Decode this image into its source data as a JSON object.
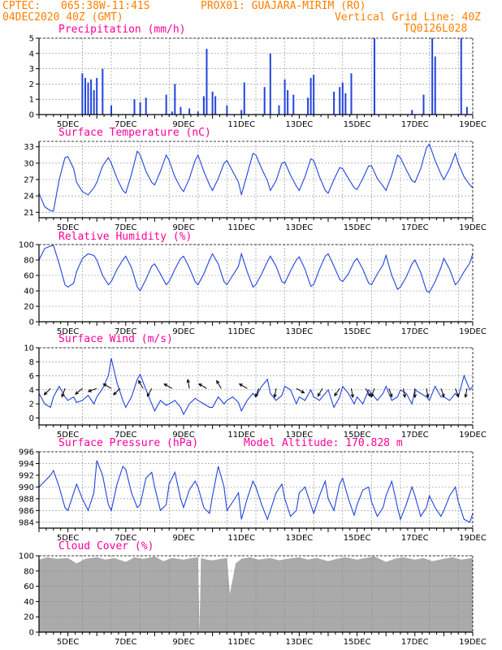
{
  "header": {
    "line1_left": "CPTEC:",
    "coords": "065:38W-11:41S",
    "station": "PROX01: GUAJARA-MIRIM (RO)",
    "datetime": "04DEC2020 40Z (GMT)",
    "vgrid": "Vertical Grid Line: 40Z",
    "code": "TQ0126L028"
  },
  "colors": {
    "header": "#ff7f00",
    "title": "#ff0099",
    "line": "#2244dd",
    "cloud": "#aaaaaa",
    "arrow": "#000000"
  },
  "x_ticks": [
    "5DEC",
    "7DEC",
    "9DEC",
    "11DEC",
    "13DEC",
    "15DEC",
    "17DEC",
    "19DEC"
  ],
  "chart_data": [
    {
      "type": "bar",
      "title": "Precipitation (mm/h)",
      "ylim": [
        0,
        5
      ],
      "yticks": [
        "0",
        "1",
        "2",
        "3",
        "4",
        "5"
      ],
      "x_range": [
        4,
        19
      ],
      "events": [
        [
          5.5,
          2.7
        ],
        [
          5.6,
          2.4
        ],
        [
          5.7,
          2.1
        ],
        [
          5.8,
          2.3
        ],
        [
          5.9,
          1.6
        ],
        [
          6.0,
          2.4
        ],
        [
          6.2,
          3.0
        ],
        [
          6.5,
          0.6
        ],
        [
          7.3,
          1.0
        ],
        [
          7.5,
          0.8
        ],
        [
          7.7,
          1.1
        ],
        [
          8.4,
          1.3
        ],
        [
          8.6,
          0.2
        ],
        [
          8.7,
          2.0
        ],
        [
          8.9,
          0.5
        ],
        [
          9.2,
          0.4
        ],
        [
          9.5,
          0.2
        ],
        [
          9.7,
          1.2
        ],
        [
          9.8,
          4.3
        ],
        [
          10.0,
          1.5
        ],
        [
          10.1,
          1.2
        ],
        [
          10.5,
          0.6
        ],
        [
          11.0,
          0.3
        ],
        [
          11.1,
          2.1
        ],
        [
          11.8,
          1.8
        ],
        [
          12.0,
          4.0
        ],
        [
          12.3,
          0.6
        ],
        [
          12.5,
          2.3
        ],
        [
          12.6,
          1.6
        ],
        [
          12.8,
          1.3
        ],
        [
          13.3,
          1.1
        ],
        [
          13.4,
          2.4
        ],
        [
          13.5,
          2.6
        ],
        [
          14.2,
          1.5
        ],
        [
          14.4,
          1.8
        ],
        [
          14.5,
          2.1
        ],
        [
          14.6,
          1.4
        ],
        [
          14.8,
          2.7
        ],
        [
          15.6,
          5.0
        ],
        [
          16.9,
          0.3
        ],
        [
          17.3,
          1.3
        ],
        [
          17.6,
          5.0
        ],
        [
          17.7,
          3.8
        ],
        [
          18.6,
          5.0
        ],
        [
          18.8,
          0.5
        ]
      ]
    },
    {
      "type": "line",
      "title": "Surface Temperature (nC)",
      "ylim": [
        20,
        34
      ],
      "yticks": [
        "21",
        "24",
        "27",
        "30",
        "33"
      ],
      "x_range": [
        4,
        19
      ],
      "x": [
        4.0,
        4.2,
        4.4,
        4.5,
        4.7,
        4.9,
        5.0,
        5.2,
        5.3,
        5.5,
        5.7,
        5.9,
        6.0,
        6.2,
        6.4,
        6.5,
        6.7,
        6.9,
        7.0,
        7.2,
        7.4,
        7.5,
        7.7,
        7.9,
        8.0,
        8.2,
        8.4,
        8.5,
        8.7,
        8.9,
        9.0,
        9.2,
        9.4,
        9.5,
        9.7,
        9.9,
        10.0,
        10.2,
        10.4,
        10.5,
        10.7,
        10.9,
        11.0,
        11.2,
        11.4,
        11.5,
        11.7,
        11.9,
        12.0,
        12.2,
        12.4,
        12.5,
        12.7,
        12.9,
        13.0,
        13.2,
        13.4,
        13.5,
        13.7,
        13.9,
        14.0,
        14.2,
        14.4,
        14.5,
        14.7,
        14.9,
        15.0,
        15.2,
        15.4,
        15.5,
        15.7,
        15.9,
        16.0,
        16.2,
        16.4,
        16.5,
        16.7,
        16.9,
        17.0,
        17.2,
        17.4,
        17.5,
        17.7,
        17.9,
        18.0,
        18.2,
        18.4,
        18.5,
        18.7,
        18.9,
        19.0
      ],
      "values": [
        24.5,
        22.0,
        21.3,
        21.2,
        27.0,
        31.0,
        31.2,
        29.0,
        26.5,
        24.8,
        24.2,
        25.5,
        26.5,
        29.5,
        31.0,
        30.0,
        27.2,
        25.0,
        24.5,
        28.0,
        32.2,
        31.5,
        28.5,
        26.5,
        26.0,
        28.5,
        31.5,
        30.5,
        27.5,
        25.5,
        24.8,
        27.2,
        30.5,
        31.5,
        28.5,
        26.0,
        25.0,
        27.2,
        30.0,
        30.5,
        28.5,
        26.5,
        24.2,
        28.0,
        31.8,
        31.5,
        29.0,
        26.8,
        25.0,
        26.8,
        30.0,
        30.2,
        27.8,
        25.8,
        25.0,
        27.5,
        30.8,
        30.5,
        27.5,
        25.0,
        24.5,
        27.0,
        29.2,
        29.0,
        27.2,
        25.5,
        25.2,
        27.2,
        29.5,
        29.5,
        27.2,
        25.8,
        25.0,
        27.8,
        31.5,
        31.0,
        28.8,
        26.8,
        26.5,
        29.0,
        32.8,
        33.5,
        30.5,
        28.0,
        27.0,
        29.0,
        31.8,
        30.0,
        27.5,
        26.0,
        25.5
      ]
    },
    {
      "type": "line",
      "title": "Relative Humidity (%)",
      "ylim": [
        0,
        100
      ],
      "yticks": [
        "0",
        "20",
        "40",
        "60",
        "80",
        "100"
      ],
      "x_range": [
        4,
        19
      ],
      "x": [
        4.0,
        4.2,
        4.4,
        4.5,
        4.7,
        4.9,
        5.0,
        5.2,
        5.3,
        5.5,
        5.7,
        5.9,
        6.0,
        6.2,
        6.4,
        6.5,
        6.7,
        6.9,
        7.0,
        7.2,
        7.4,
        7.5,
        7.7,
        7.9,
        8.0,
        8.2,
        8.4,
        8.5,
        8.7,
        8.9,
        9.0,
        9.2,
        9.4,
        9.5,
        9.7,
        9.9,
        10.0,
        10.2,
        10.4,
        10.5,
        10.7,
        10.9,
        11.0,
        11.2,
        11.4,
        11.5,
        11.7,
        11.9,
        12.0,
        12.2,
        12.4,
        12.5,
        12.7,
        12.9,
        13.0,
        13.2,
        13.4,
        13.5,
        13.7,
        13.9,
        14.0,
        14.2,
        14.4,
        14.5,
        14.7,
        14.9,
        15.0,
        15.2,
        15.4,
        15.5,
        15.7,
        15.9,
        16.0,
        16.2,
        16.4,
        16.5,
        16.7,
        16.9,
        17.0,
        17.2,
        17.4,
        17.5,
        17.7,
        17.9,
        18.0,
        18.2,
        18.4,
        18.5,
        18.7,
        18.9,
        19.0
      ],
      "values": [
        80,
        95,
        98,
        99,
        75,
        48,
        45,
        50,
        65,
        82,
        88,
        86,
        80,
        60,
        48,
        52,
        68,
        80,
        85,
        70,
        45,
        40,
        55,
        72,
        75,
        62,
        48,
        52,
        68,
        82,
        85,
        70,
        52,
        48,
        62,
        80,
        88,
        75,
        52,
        48,
        60,
        72,
        88,
        65,
        45,
        48,
        62,
        78,
        85,
        72,
        52,
        50,
        66,
        80,
        84,
        68,
        46,
        48,
        68,
        85,
        88,
        72,
        55,
        52,
        62,
        78,
        82,
        68,
        50,
        48,
        62,
        74,
        86,
        60,
        42,
        45,
        58,
        75,
        80,
        64,
        40,
        38,
        52,
        70,
        82,
        68,
        48,
        52,
        65,
        76,
        88
      ]
    },
    {
      "type": "line",
      "title": "Surface Wind (m/s)",
      "ylim": [
        -1,
        10
      ],
      "yticks": [
        "0",
        "2",
        "4",
        "6",
        "8",
        "10"
      ],
      "x_range": [
        4,
        19
      ],
      "x": [
        4.0,
        4.2,
        4.4,
        4.5,
        4.7,
        4.9,
        5.0,
        5.2,
        5.3,
        5.5,
        5.7,
        5.9,
        6.0,
        6.2,
        6.4,
        6.5,
        6.7,
        6.9,
        7.0,
        7.2,
        7.4,
        7.5,
        7.7,
        7.9,
        8.0,
        8.2,
        8.4,
        8.5,
        8.7,
        8.9,
        9.0,
        9.2,
        9.4,
        9.5,
        9.7,
        9.9,
        10.0,
        10.2,
        10.4,
        10.5,
        10.7,
        10.9,
        11.0,
        11.2,
        11.4,
        11.5,
        11.7,
        11.9,
        12.0,
        12.2,
        12.4,
        12.5,
        12.7,
        12.9,
        13.0,
        13.2,
        13.4,
        13.5,
        13.7,
        13.9,
        14.0,
        14.2,
        14.4,
        14.5,
        14.7,
        14.9,
        15.0,
        15.2,
        15.4,
        15.5,
        15.7,
        15.9,
        16.0,
        16.2,
        16.4,
        16.5,
        16.7,
        16.9,
        17.0,
        17.2,
        17.4,
        17.5,
        17.7,
        17.9,
        18.0,
        18.2,
        18.4,
        18.5,
        18.7,
        18.9,
        19.0
      ],
      "values": [
        3.5,
        2.0,
        1.5,
        3.0,
        4.5,
        3.0,
        2.5,
        3.0,
        2.2,
        2.5,
        3.2,
        2.0,
        3.0,
        4.2,
        6.0,
        8.5,
        5.0,
        2.5,
        1.5,
        3.0,
        5.5,
        6.2,
        4.0,
        2.0,
        1.0,
        2.5,
        1.8,
        2.0,
        2.5,
        1.5,
        0.5,
        2.0,
        2.8,
        2.5,
        2.0,
        1.5,
        1.5,
        3.0,
        2.0,
        2.5,
        3.0,
        2.2,
        1.0,
        2.5,
        3.5,
        3.0,
        4.5,
        5.5,
        3.5,
        2.5,
        3.2,
        4.5,
        4.0,
        2.0,
        3.0,
        2.5,
        4.0,
        3.0,
        2.5,
        3.5,
        4.0,
        1.5,
        3.0,
        4.5,
        3.5,
        2.0,
        3.0,
        2.0,
        4.0,
        3.5,
        2.5,
        3.5,
        4.5,
        2.5,
        3.0,
        4.0,
        3.5,
        2.0,
        4.0,
        3.5,
        3.0,
        2.5,
        4.5,
        3.0,
        3.0,
        2.5,
        3.5,
        3.0,
        6.0,
        4.0,
        4.5
      ],
      "arrows": [
        [
          4.4,
          225
        ],
        [
          4.9,
          200
        ],
        [
          5.5,
          230
        ],
        [
          6.0,
          250
        ],
        [
          6.5,
          300
        ],
        [
          6.8,
          225
        ],
        [
          7.6,
          330
        ],
        [
          7.9,
          210
        ],
        [
          8.6,
          300
        ],
        [
          9.2,
          350
        ],
        [
          9.8,
          300
        ],
        [
          10.3,
          330
        ],
        [
          11.2,
          300
        ],
        [
          11.6,
          200
        ],
        [
          12.2,
          190
        ],
        [
          12.9,
          120
        ],
        [
          13.8,
          210
        ],
        [
          14.4,
          215
        ],
        [
          14.8,
          170
        ],
        [
          15.3,
          150
        ],
        [
          15.6,
          200
        ],
        [
          16.1,
          160
        ],
        [
          16.6,
          170
        ],
        [
          17.0,
          180
        ],
        [
          17.4,
          170
        ],
        [
          17.9,
          160
        ],
        [
          18.4,
          160
        ],
        [
          18.8,
          190
        ]
      ]
    },
    {
      "type": "line",
      "title": "Surface Pressure (hPa)",
      "annotation": "Model Altitude: 170.828 m",
      "ylim": [
        983,
        996
      ],
      "yticks": [
        "984",
        "986",
        "988",
        "990",
        "992",
        "994",
        "996"
      ],
      "x_range": [
        4,
        19
      ],
      "x": [
        4.0,
        4.2,
        4.4,
        4.5,
        4.7,
        4.9,
        5.0,
        5.2,
        5.3,
        5.5,
        5.7,
        5.9,
        6.0,
        6.2,
        6.4,
        6.5,
        6.7,
        6.9,
        7.0,
        7.2,
        7.4,
        7.5,
        7.7,
        7.9,
        8.0,
        8.2,
        8.4,
        8.5,
        8.7,
        8.9,
        9.0,
        9.2,
        9.4,
        9.5,
        9.7,
        9.9,
        10.0,
        10.2,
        10.4,
        10.5,
        10.7,
        10.9,
        11.0,
        11.2,
        11.4,
        11.5,
        11.7,
        11.9,
        12.0,
        12.2,
        12.4,
        12.5,
        12.7,
        12.9,
        13.0,
        13.2,
        13.4,
        13.5,
        13.7,
        13.9,
        14.0,
        14.2,
        14.4,
        14.5,
        14.7,
        14.9,
        15.0,
        15.2,
        15.4,
        15.5,
        15.7,
        15.9,
        16.0,
        16.2,
        16.4,
        16.5,
        16.7,
        16.9,
        17.0,
        17.2,
        17.4,
        17.5,
        17.7,
        17.9,
        18.0,
        18.2,
        18.4,
        18.5,
        18.7,
        18.9,
        19.0
      ],
      "values": [
        990,
        991,
        992,
        992.8,
        990,
        986.5,
        986,
        989,
        990.5,
        988,
        986,
        989,
        994.5,
        992,
        987,
        986,
        990.5,
        993.5,
        993,
        989,
        986.5,
        987,
        991.5,
        992.5,
        990,
        986,
        987,
        990.5,
        992.5,
        988,
        986.5,
        989.5,
        991,
        990,
        986.5,
        985.5,
        988.5,
        993.5,
        990,
        986,
        987.5,
        989,
        984.5,
        988,
        991,
        990,
        987,
        984.5,
        986,
        989,
        990.5,
        988,
        985,
        986,
        989,
        990,
        987,
        985.5,
        988.5,
        991,
        988,
        986,
        990.5,
        991.5,
        988,
        985.2,
        987,
        989.5,
        990,
        987.5,
        985,
        986.5,
        988.5,
        991,
        986.5,
        984.5,
        987,
        990,
        988.5,
        985,
        986.5,
        988.5,
        986.5,
        985,
        986,
        988.5,
        990,
        987.5,
        984.5,
        984,
        985.5
      ]
    },
    {
      "type": "area",
      "title": "Cloud Cover (%)",
      "ylim": [
        0,
        100
      ],
      "yticks": [
        "0",
        "20",
        "40",
        "60",
        "80",
        "100"
      ],
      "x_range": [
        4,
        19
      ],
      "x": [
        4.0,
        4.3,
        4.6,
        5.0,
        5.3,
        5.6,
        6.0,
        6.3,
        6.6,
        7.0,
        7.3,
        7.6,
        8.0,
        8.3,
        8.6,
        9.0,
        9.3,
        9.5,
        9.55,
        9.6,
        9.8,
        10.0,
        10.3,
        10.5,
        10.6,
        10.8,
        11.0,
        11.3,
        11.6,
        12.0,
        12.3,
        12.6,
        13.0,
        13.3,
        13.6,
        14.0,
        14.3,
        14.6,
        15.0,
        15.3,
        15.6,
        16.0,
        16.3,
        16.6,
        17.0,
        17.3,
        17.6,
        18.0,
        18.3,
        18.6,
        19.0
      ],
      "values": [
        95,
        98,
        96,
        97,
        90,
        96,
        98,
        95,
        97,
        92,
        98,
        96,
        99,
        93,
        97,
        95,
        97,
        98,
        0,
        97,
        95,
        94,
        96,
        97,
        50,
        90,
        96,
        98,
        95,
        97,
        94,
        96,
        98,
        95,
        97,
        93,
        96,
        98,
        95,
        97,
        99,
        92,
        96,
        98,
        95,
        97,
        93,
        96,
        98,
        95,
        97
      ]
    }
  ]
}
